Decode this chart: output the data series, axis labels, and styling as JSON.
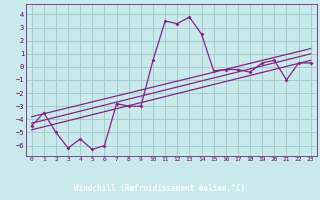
{
  "xlabel": "Windchill (Refroidissement éolien,°C)",
  "xlim": [
    -0.5,
    23.5
  ],
  "ylim": [
    -6.8,
    4.8
  ],
  "yticks": [
    -6,
    -5,
    -4,
    -3,
    -2,
    -1,
    0,
    1,
    2,
    3,
    4
  ],
  "xticks": [
    0,
    1,
    2,
    3,
    4,
    5,
    6,
    7,
    8,
    9,
    10,
    11,
    12,
    13,
    14,
    15,
    16,
    17,
    18,
    19,
    20,
    21,
    22,
    23
  ],
  "bg_color": "#c8eaea",
  "grid_color": "#a8cccc",
  "line_color": "#882288",
  "xlabel_bg": "#330055",
  "xlabel_fg": "#ffffff",
  "tick_color": "#660066",
  "line1_x": [
    0,
    1,
    2,
    3,
    4,
    5,
    6,
    7,
    8,
    9,
    10,
    11,
    12,
    13,
    14,
    15,
    16,
    17,
    18,
    19,
    20,
    21,
    22,
    23
  ],
  "line1_y": [
    -4.5,
    -3.5,
    -5.0,
    -6.2,
    -5.5,
    -6.3,
    -6.0,
    -2.8,
    -3.0,
    -3.0,
    0.5,
    3.5,
    3.3,
    3.8,
    2.5,
    -0.3,
    -0.2,
    -0.2,
    -0.4,
    0.3,
    0.5,
    -1.0,
    0.3,
    0.3
  ],
  "line2_x": [
    0,
    23
  ],
  "line2_y": [
    -4.8,
    0.5
  ],
  "line3_x": [
    0,
    23
  ],
  "line3_y": [
    -4.3,
    1.0
  ],
  "line4_x": [
    0,
    23
  ],
  "line4_y": [
    -3.8,
    1.4
  ]
}
